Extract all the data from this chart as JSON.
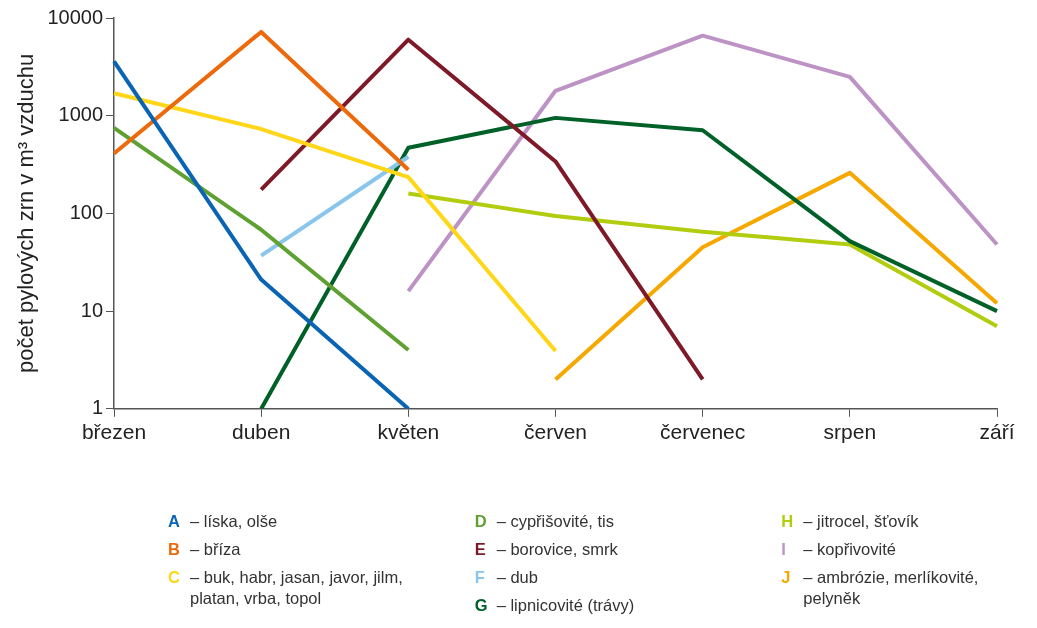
{
  "chart_data": {
    "type": "line",
    "ylabel": "počet pylových zrn v m³ vzduchu",
    "categories": [
      "březen",
      "duben",
      "květen",
      "červen",
      "červenec",
      "srpen",
      "září"
    ],
    "log": "y",
    "ylim": [
      1,
      10000
    ],
    "yticks": [
      1,
      10,
      100,
      1000,
      10000
    ],
    "grid": false,
    "legend": "bottom",
    "marker": "none",
    "line_style": "solid",
    "series": [
      {
        "name": "A – líska, olše",
        "color": "#0a64b4",
        "values": [
          3600,
          21,
          1,
          null,
          null,
          null,
          null
        ]
      },
      {
        "name": "B – bříza",
        "color": "#ec6a0c",
        "values": [
          410,
          7200,
          280,
          null,
          null,
          null,
          null
        ]
      },
      {
        "name": "C – buk, habr, jasan, javor, jilm, platan, vrba, topol",
        "color": "#ffd618",
        "values": [
          1700,
          730,
          235,
          3.9,
          null,
          null,
          null
        ]
      },
      {
        "name": "D – cypřišovité, tis",
        "color": "#5ea132",
        "values": [
          750,
          68,
          4,
          null,
          null,
          null,
          null
        ]
      },
      {
        "name": "E – borovice, smrk",
        "color": "#7e1928",
        "values": [
          null,
          175,
          6000,
          340,
          2,
          null,
          null
        ]
      },
      {
        "name": "F – dub",
        "color": "#88c6ec",
        "values": [
          null,
          37,
          380,
          null,
          null,
          null,
          null
        ]
      },
      {
        "name": "G – lipnicovité (trávy)",
        "color": "#006128",
        "values": [
          null,
          1,
          470,
          950,
          710,
          52,
          10
        ]
      },
      {
        "name": "H – jitrocel, šťovík",
        "color": "#b2cd10",
        "values": [
          null,
          null,
          160,
          94,
          65,
          48,
          7
        ]
      },
      {
        "name": "I – kopřivovité",
        "color": "#bd93c6",
        "values": [
          null,
          null,
          16,
          1800,
          6600,
          2500,
          48
        ]
      },
      {
        "name": "J – ambrózie, merlíkovité, pelyněk",
        "color": "#f6a800",
        "values": [
          null,
          null,
          null,
          2,
          45,
          260,
          12
        ]
      }
    ]
  }
}
